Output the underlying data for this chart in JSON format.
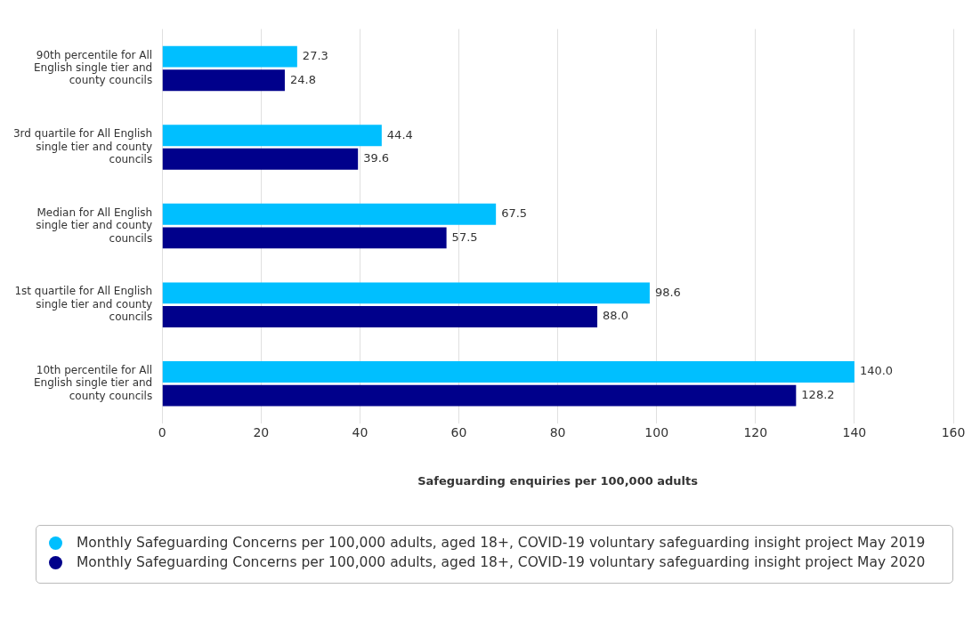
{
  "chart_data": {
    "type": "bar",
    "orientation": "horizontal",
    "xlabel": "Safeguarding enquiries per 100,000 adults",
    "categories": [
      "90th percentile for All English single tier and county councils",
      "3rd quartile for All English single tier and county councils",
      "Median for All English single tier and county councils",
      "1st quartile for All English single tier and county councils",
      "10th percentile for All English single tier and county councils"
    ],
    "series": [
      {
        "name": "Monthly Safeguarding Concerns per 100,000 adults, aged 18+, COVID-19 voluntary safeguarding insight project May 2019",
        "color": "#00bfff",
        "values": [
          27.3,
          44.4,
          67.5,
          98.6,
          140.0
        ],
        "value_labels": [
          "27.3",
          "44.4",
          "67.5",
          "98.6",
          "140.0"
        ]
      },
      {
        "name": "Monthly Safeguarding Concerns per 100,000 adults, aged 18+, COVID-19 voluntary safeguarding insight project May 2020",
        "color": "#00008b",
        "values": [
          24.8,
          39.6,
          57.5,
          88.0,
          128.2
        ],
        "value_labels": [
          "24.8",
          "39.6",
          "57.5",
          "88.0",
          "128.2"
        ]
      }
    ],
    "xlim": [
      0,
      160
    ],
    "xticks": [
      0,
      20,
      40,
      60,
      80,
      100,
      120,
      140,
      160
    ],
    "grid": "x",
    "legend": "bottom"
  }
}
